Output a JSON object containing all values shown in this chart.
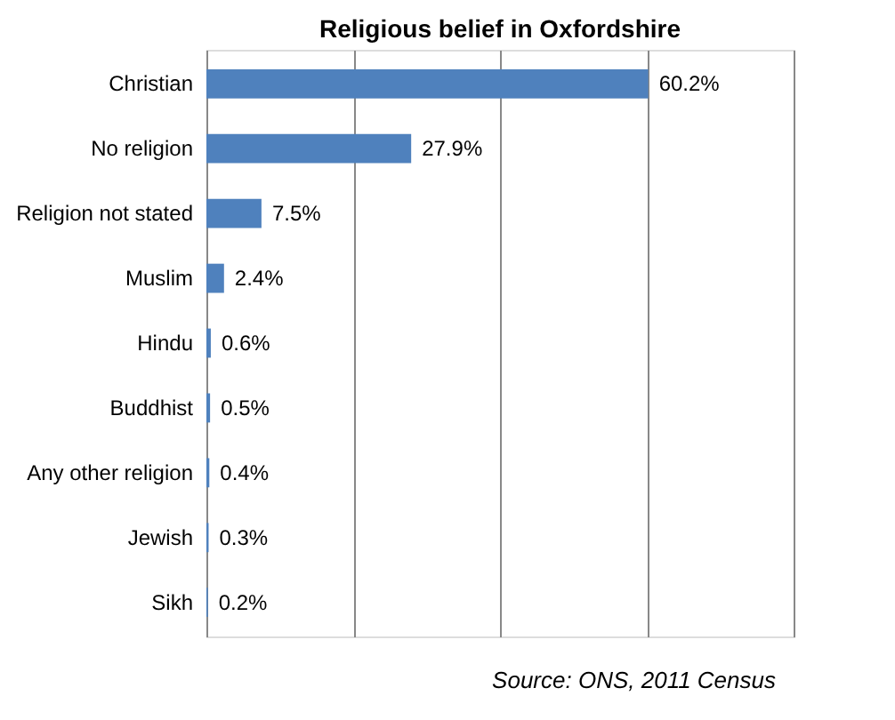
{
  "chart_data": {
    "type": "bar",
    "orientation": "horizontal",
    "title": "Religious belief in Oxfordshire",
    "categories": [
      "Christian",
      "No religion",
      "Religion not stated",
      "Muslim",
      "Hindu",
      "Buddhist",
      "Any other religion",
      "Jewish",
      "Sikh"
    ],
    "values": [
      60.2,
      27.9,
      7.5,
      2.4,
      0.6,
      0.5,
      0.4,
      0.3,
      0.2
    ],
    "value_labels": [
      "60.2%",
      "27.9%",
      "7.5%",
      "2.4%",
      "0.6%",
      "0.5%",
      "0.4%",
      "0.3%",
      "0.2%"
    ],
    "color": "#4f81bd",
    "xlim": [
      0,
      80
    ],
    "xticks": [
      {
        "value": 0,
        "label": null
      },
      {
        "value": 20,
        "label": null
      },
      {
        "value": 40,
        "label": null
      },
      {
        "value": 60,
        "label": null
      },
      {
        "value": 80,
        "label": null
      }
    ],
    "grid": "x",
    "tick_labels": "y",
    "annotations": [
      "Source: ONS, 2011 Census"
    ]
  }
}
